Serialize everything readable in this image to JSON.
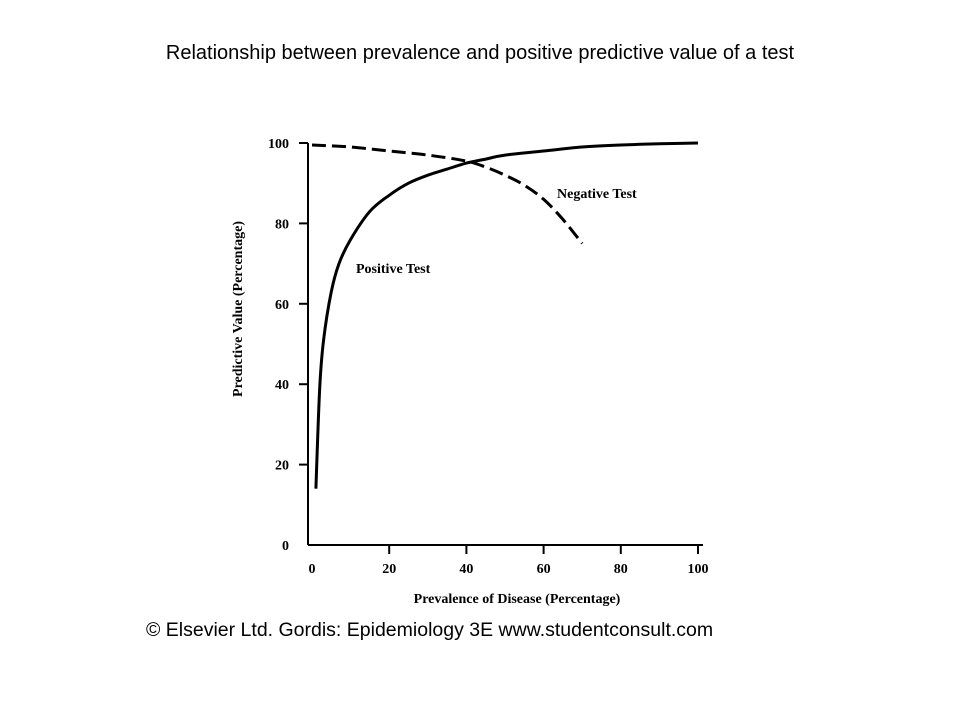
{
  "title": "Relationship between prevalence and positive predictive value of a test",
  "copyright": "© Elsevier Ltd. Gordis: Epidemiology 3E www.studentconsult.com",
  "colors": {
    "line": "#000000",
    "background": "#ffffff"
  },
  "chart_data": {
    "type": "line",
    "xlabel": "Prevalence of Disease (Percentage)",
    "ylabel": "Predictive Value (Percentage)",
    "xlim": [
      0,
      100
    ],
    "ylim": [
      0,
      100
    ],
    "xticks": [
      "0",
      "20",
      "40",
      "60",
      "80",
      "100"
    ],
    "yticks": [
      "0",
      "20",
      "40",
      "60",
      "80",
      "100"
    ],
    "grid": false,
    "legend": "none (series labeled directly on the curves)",
    "series": [
      {
        "name": "Positive Test",
        "style": "solid",
        "x": [
          1,
          2,
          3,
          5,
          7,
          10,
          15,
          20,
          25,
          30,
          35,
          40,
          45,
          50,
          60,
          70,
          80,
          90,
          100
        ],
        "y": [
          14,
          39,
          51,
          63,
          70,
          76,
          83,
          87,
          90,
          92,
          93.5,
          95,
          96,
          97,
          98,
          99,
          99.5,
          99.8,
          100
        ]
      },
      {
        "name": "Negative Test",
        "style": "dashed",
        "x": [
          0,
          10,
          20,
          30,
          40,
          45,
          50,
          55,
          60,
          65,
          70
        ],
        "y": [
          99.5,
          99,
          98,
          97,
          95.5,
          94,
          92,
          89.5,
          86,
          81,
          75
        ]
      }
    ]
  }
}
